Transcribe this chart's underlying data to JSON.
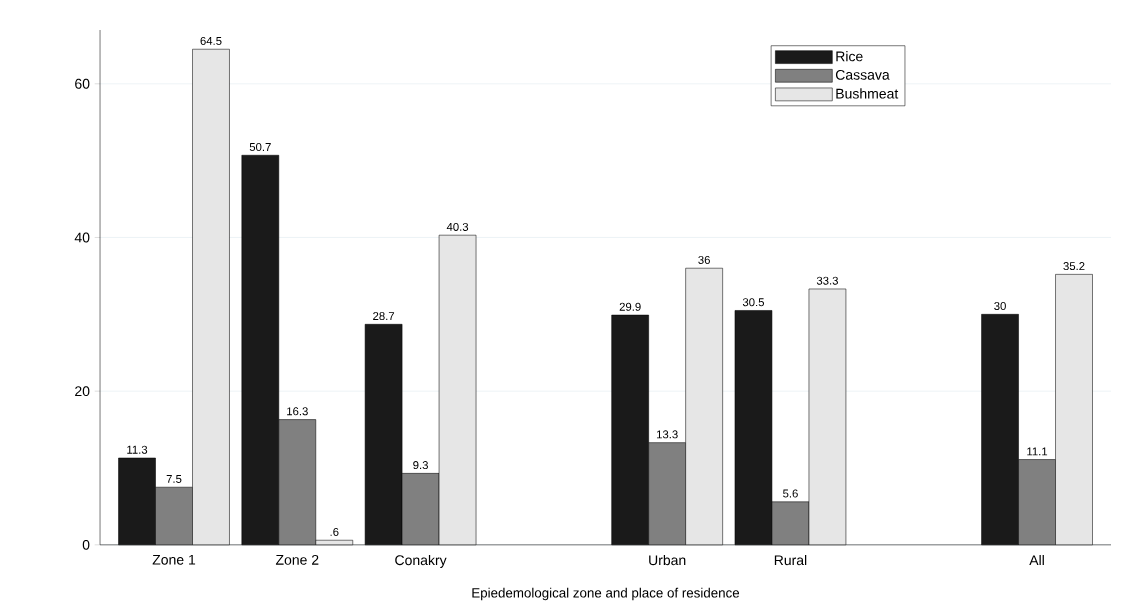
{
  "chart_data": {
    "type": "bar",
    "xlabel": "Epiedemological zone and place of residence",
    "categories": [
      "Zone 1",
      "Zone 2",
      "Conakry",
      null,
      "Urban",
      "Rural",
      null,
      "All"
    ],
    "series": [
      {
        "name": "Rice",
        "color": "#1a1a1a",
        "values": [
          11.3,
          50.7,
          28.7,
          null,
          29.9,
          30.5,
          null,
          30
        ],
        "value_labels": [
          "11.3",
          "50.7",
          "28.7",
          null,
          "29.9",
          "30.5",
          null,
          "30"
        ]
      },
      {
        "name": "Cassava",
        "color": "#808080",
        "values": [
          7.5,
          16.3,
          9.3,
          null,
          13.3,
          5.6,
          null,
          11.1
        ],
        "value_labels": [
          "7.5",
          "16.3",
          "9.3",
          null,
          "13.3",
          "5.6",
          null,
          "11.1"
        ]
      },
      {
        "name": "Bushmeat",
        "color": "#e6e6e6",
        "values": [
          64.5,
          0.6,
          40.3,
          null,
          36,
          33.3,
          null,
          35.2
        ],
        "value_labels": [
          "64.5",
          ".6",
          "40.3",
          null,
          "36",
          "33.3",
          null,
          "35.2"
        ]
      }
    ],
    "ylim": [
      0,
      67
    ],
    "yticks": [
      0,
      20,
      40,
      60
    ],
    "grid": "y",
    "legend": "top right"
  }
}
